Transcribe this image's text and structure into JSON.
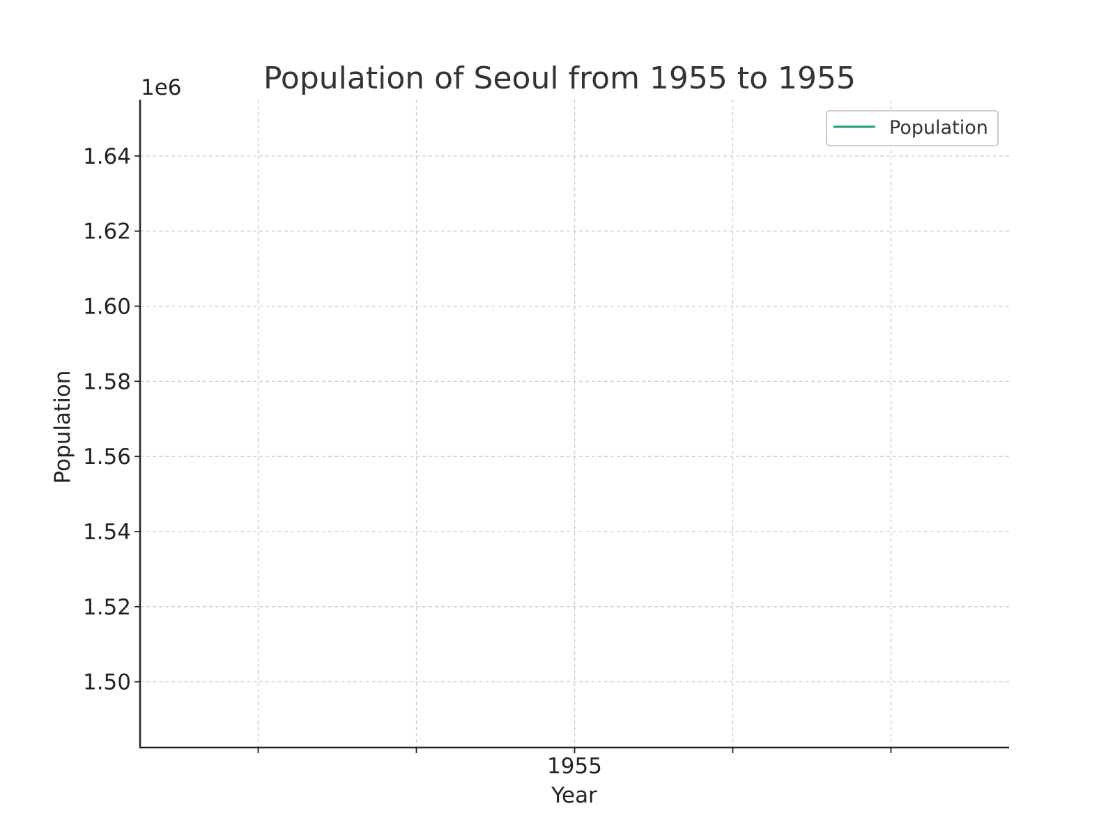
{
  "chart_data": {
    "type": "line",
    "title": "Population of Seoul from 1955 to 1955",
    "xlabel": "Year",
    "ylabel": "Population",
    "y_offset_label": "1e6",
    "y_scale_factor": 1000000,
    "x_ticks": [
      "1955"
    ],
    "y_ticks": [
      1.5,
      1.52,
      1.54,
      1.56,
      1.58,
      1.6,
      1.62,
      1.64
    ],
    "ylim": [
      1.4825,
      1.655
    ],
    "grid": true,
    "legend_position": "top-right",
    "series": [
      {
        "name": "Population",
        "color": "#1a9e7e",
        "x": [],
        "values": []
      }
    ]
  }
}
